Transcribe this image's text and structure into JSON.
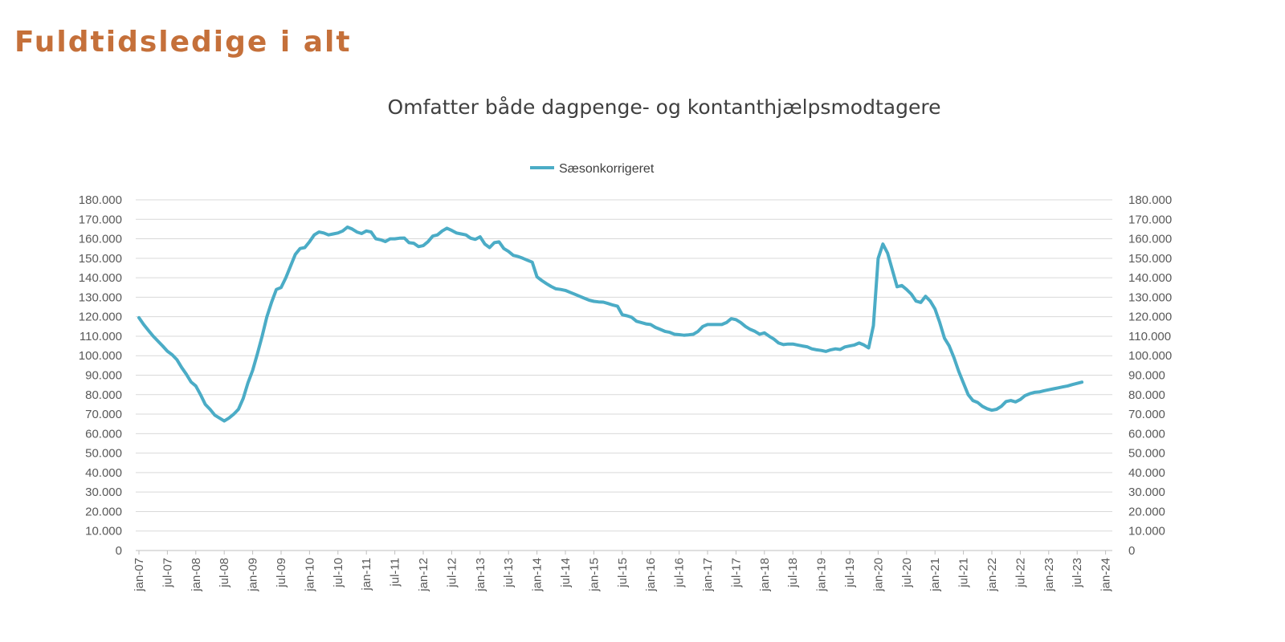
{
  "header": {
    "title": "Fuldtidsledige i alt"
  },
  "chart_data": {
    "type": "line",
    "title": "Omfatter både dagpenge- og kontanthjælpsmodtagere",
    "xlabel": "",
    "ylabel": "",
    "ylim": [
      0,
      180000
    ],
    "y_ticks": [
      "0",
      "10.000",
      "20.000",
      "30.000",
      "40.000",
      "50.000",
      "60.000",
      "70.000",
      "80.000",
      "90.000",
      "100.000",
      "110.000",
      "120.000",
      "130.000",
      "140.000",
      "150.000",
      "160.000",
      "170.000",
      "180.000"
    ],
    "y_axes": "left and right (mirrored)",
    "x_ticks": [
      "jan-07",
      "jul-07",
      "jan-08",
      "jul-08",
      "jan-09",
      "jul-09",
      "jan-10",
      "jul-10",
      "jan-11",
      "jul-11",
      "jan-12",
      "jul-12",
      "jan-13",
      "jul-13",
      "jan-14",
      "jul-14",
      "jan-15",
      "jul-15",
      "jan-16",
      "jul-16",
      "jan-17",
      "jul-17",
      "jan-18",
      "jul-18",
      "jan-19",
      "jul-19",
      "jan-20",
      "jul-20",
      "jan-21",
      "jul-21",
      "jan-22",
      "jul-22",
      "jan-23",
      "jul-23",
      "jan-24"
    ],
    "x_range": [
      "jan-07",
      "jan-24"
    ],
    "x_frequency": "monthly, starting jan-07",
    "grid": true,
    "legend": "top-center",
    "color": "#4BACC6",
    "series": [
      {
        "name": "Sæsonkorrigeret",
        "values": [
          119500,
          116000,
          113000,
          110000,
          107500,
          105000,
          102300,
          100500,
          98000,
          94000,
          90500,
          86500,
          84500,
          80000,
          75000,
          72500,
          69500,
          68000,
          66500,
          68000,
          70000,
          72500,
          78000,
          86000,
          92500,
          101000,
          110000,
          120000,
          127500,
          134000,
          135000,
          140000,
          146000,
          152000,
          155000,
          155500,
          158500,
          162000,
          163500,
          163000,
          162000,
          162500,
          163000,
          164000,
          166000,
          165000,
          163500,
          162700,
          164000,
          163500,
          160000,
          159500,
          158600,
          160000,
          160000,
          160300,
          160400,
          158000,
          157700,
          156000,
          156500,
          158500,
          161400,
          162000,
          164000,
          165400,
          164300,
          163000,
          162500,
          162000,
          160300,
          159700,
          161000,
          157300,
          155500,
          158000,
          158400,
          155000,
          153500,
          151500,
          150900,
          150000,
          149000,
          148000,
          140500,
          138600,
          137000,
          135500,
          134300,
          134000,
          133500,
          132500,
          131500,
          130500,
          129500,
          128500,
          127900,
          127600,
          127500,
          126800,
          126000,
          125400,
          121000,
          120500,
          119700,
          117700,
          117000,
          116300,
          116000,
          114500,
          113500,
          112500,
          112000,
          111000,
          110800,
          110500,
          110700,
          111000,
          112500,
          115000,
          116000,
          116000,
          116000,
          116000,
          117000,
          119000,
          118500,
          117000,
          115000,
          113500,
          112500,
          111000,
          111700,
          110000,
          108500,
          106500,
          105700,
          106000,
          106000,
          105500,
          105000,
          104600,
          103500,
          103000,
          102700,
          102200,
          103000,
          103500,
          103200,
          104500,
          105000,
          105500,
          106500,
          105500,
          104000,
          115400,
          149900,
          157300,
          152600,
          144000,
          135400,
          136000,
          134000,
          131600,
          128000,
          127300,
          130500,
          128000,
          124000,
          117000,
          109000,
          105000,
          99000,
          92000,
          86000,
          80000,
          77000,
          76000,
          74000,
          72800,
          72000,
          72500,
          74000,
          76500,
          77000,
          76300,
          77500,
          79500,
          80500,
          81200,
          81400,
          82000,
          82500,
          83000,
          83500,
          84000,
          84500,
          85200,
          85800,
          86400
        ]
      }
    ]
  }
}
